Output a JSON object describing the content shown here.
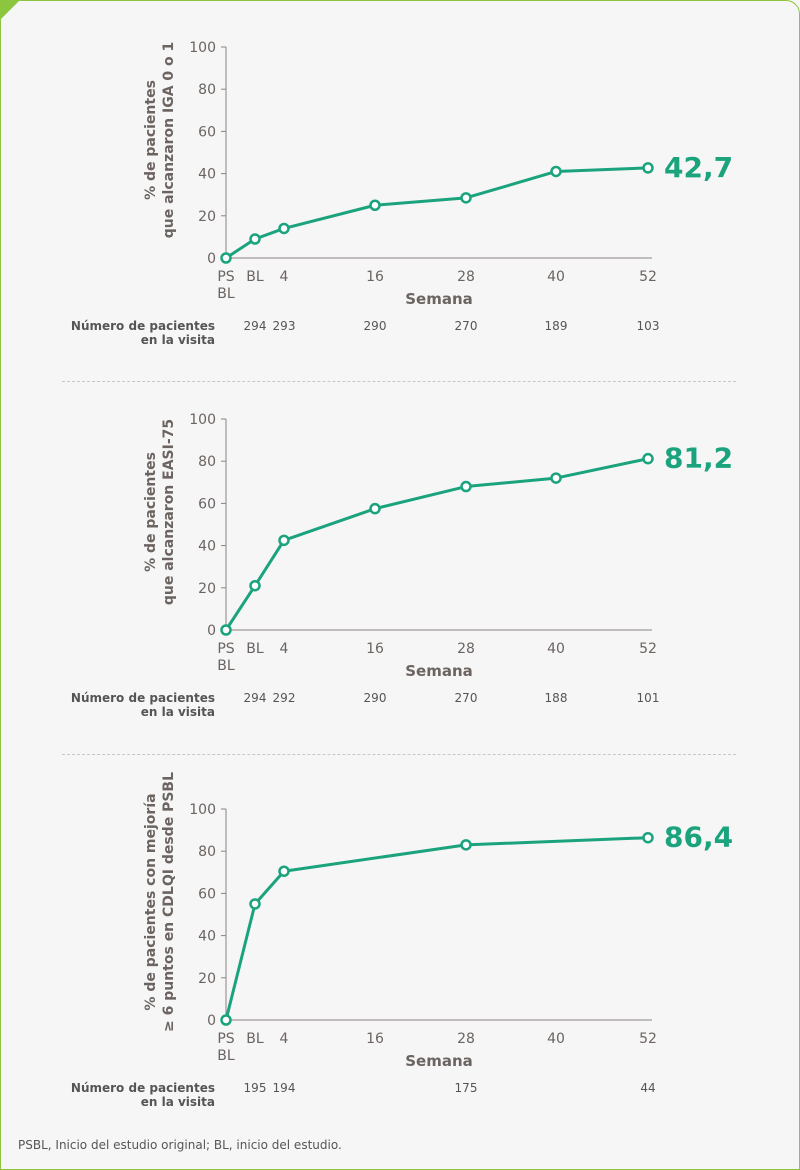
{
  "colors": {
    "line": "#1aa37d",
    "axis": "#6b6461",
    "frame": "#8cc63f"
  },
  "footnote": "PSBL, Inicio del estudio original; BL, inicio del estudio.",
  "chart_data": [
    {
      "type": "line",
      "ylabel_line1": "% de pacientes",
      "ylabel_line2": "que alcanzaron IGA 0 o 1",
      "xlabel": "Semana",
      "ylim": [
        0,
        100
      ],
      "yticks": [
        0,
        20,
        40,
        60,
        80,
        100
      ],
      "x_tick_labels": [
        [
          "PS",
          "BL"
        ],
        [
          "BL"
        ],
        [
          "4"
        ],
        [
          "16"
        ],
        [
          "28"
        ],
        [
          "40"
        ],
        [
          "52"
        ]
      ],
      "x": [
        "PSBL",
        "BL",
        "4",
        "16",
        "28",
        "40",
        "52"
      ],
      "values": [
        0,
        9,
        14,
        25,
        28.5,
        41,
        42.7
      ],
      "end_label": "42,7",
      "n_label": [
        "Número de pacientes",
        "en la visita"
      ],
      "n_values": [
        [
          "BL",
          "294"
        ],
        [
          "4",
          "293"
        ],
        [
          "16",
          "290"
        ],
        [
          "28",
          "270"
        ],
        [
          "40",
          "189"
        ],
        [
          "52",
          "103"
        ]
      ]
    },
    {
      "type": "line",
      "ylabel_line1": "% de pacientes",
      "ylabel_line2": "que alcanzaron EASI-75",
      "xlabel": "Semana",
      "ylim": [
        0,
        100
      ],
      "yticks": [
        0,
        20,
        40,
        60,
        80,
        100
      ],
      "x_tick_labels": [
        [
          "PS",
          "BL"
        ],
        [
          "BL"
        ],
        [
          "4"
        ],
        [
          "16"
        ],
        [
          "28"
        ],
        [
          "40"
        ],
        [
          "52"
        ]
      ],
      "x": [
        "PSBL",
        "BL",
        "4",
        "16",
        "28",
        "40",
        "52"
      ],
      "values": [
        0,
        21,
        42.5,
        57.5,
        68,
        72,
        81.2
      ],
      "end_label": "81,2",
      "n_label": [
        "Número de pacientes",
        "en la visita"
      ],
      "n_values": [
        [
          "BL",
          "294"
        ],
        [
          "4",
          "292"
        ],
        [
          "16",
          "290"
        ],
        [
          "28",
          "270"
        ],
        [
          "40",
          "188"
        ],
        [
          "52",
          "101"
        ]
      ]
    },
    {
      "type": "line",
      "ylabel_line1": "% de pacientes con mejoría",
      "ylabel_line2": "≥ 6 puntos en CDLQI desde PSBL",
      "xlabel": "Semana",
      "ylim": [
        0,
        100
      ],
      "yticks": [
        0,
        20,
        40,
        60,
        80,
        100
      ],
      "x_tick_labels": [
        [
          "PS",
          "BL"
        ],
        [
          "BL"
        ],
        [
          "4"
        ],
        [
          "16"
        ],
        [
          "28"
        ],
        [
          "40"
        ],
        [
          "52"
        ]
      ],
      "x": [
        "PSBL",
        "BL",
        "4",
        "28",
        "52"
      ],
      "values": [
        0,
        55,
        70.5,
        83,
        86.4
      ],
      "end_label": "86,4",
      "n_label": [
        "Número de pacientes",
        "en la visita"
      ],
      "n_values": [
        [
          "BL",
          "195"
        ],
        [
          "4",
          "194"
        ],
        [
          "28",
          "175"
        ],
        [
          "52",
          "44"
        ]
      ]
    }
  ]
}
